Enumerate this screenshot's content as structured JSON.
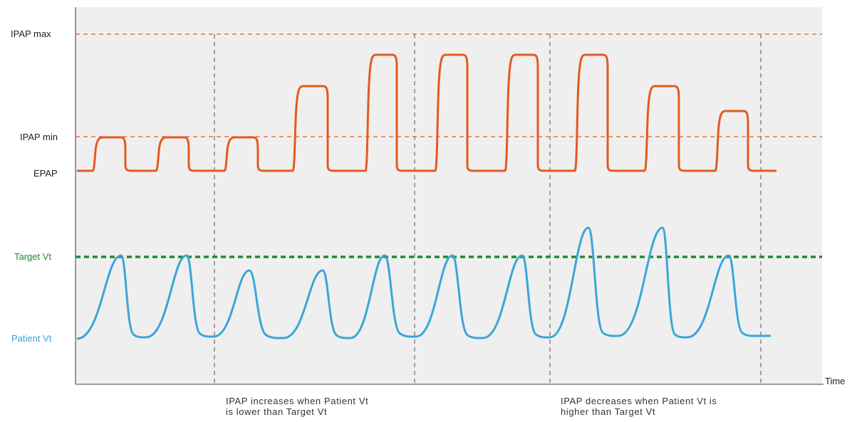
{
  "labels": {
    "ipap_max": "IPAP max",
    "ipap_min": "IPAP min",
    "epap": "EPAP",
    "target_vt": "Target Vt",
    "patient_vt": "Patient Vt",
    "time": "Time"
  },
  "annotations": {
    "increase_line1": "IPAP increases when Patient Vt",
    "increase_line2": "is lower than Target Vt",
    "decrease_line1": "IPAP decreases when Patient Vt is",
    "decrease_line2": "higher than Target Vt"
  },
  "colors": {
    "pressure": "#e35a1f",
    "volume": "#3aa6d8",
    "target": "#1e8a35",
    "grid": "#777777",
    "panel": "#efefef"
  },
  "ipap_breath_levels": [
    "min",
    "min",
    "min",
    "mid",
    "max",
    "max",
    "max",
    "max",
    "mid",
    "low"
  ],
  "vt_breath_levels": [
    "target",
    "target",
    "below",
    "below",
    "target",
    "target",
    "target",
    "above",
    "above",
    "target"
  ]
}
